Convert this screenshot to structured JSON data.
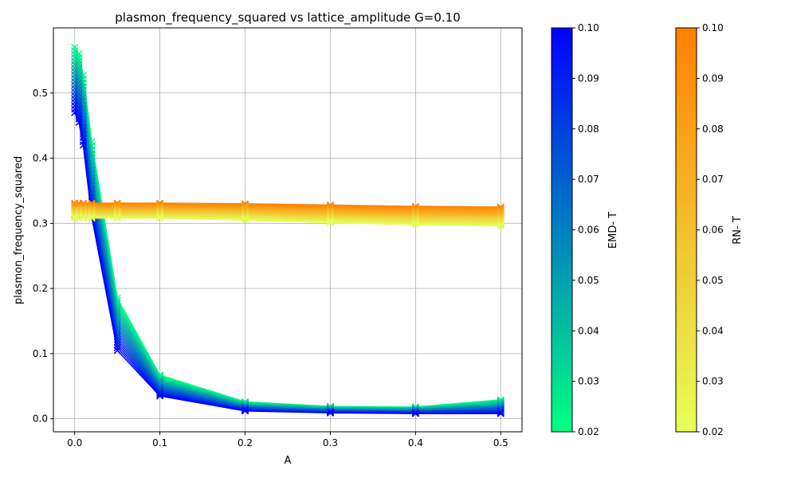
{
  "chart_data": {
    "type": "line",
    "title": "plasmon_frequency_squared vs lattice_amplitude G=0.10",
    "xlabel": "A",
    "ylabel": "plasmon_frequency_squared",
    "xlim": [
      -0.025,
      0.525
    ],
    "ylim": [
      -0.02,
      0.6
    ],
    "grid": true,
    "x": [
      0.0,
      0.005,
      0.01,
      0.02,
      0.05,
      0.1,
      0.2,
      0.3,
      0.4,
      0.5
    ],
    "x_ticks": [
      0.0,
      0.1,
      0.2,
      0.3,
      0.4,
      0.5
    ],
    "x_tick_labels": [
      "0.0",
      "0.1",
      "0.2",
      "0.3",
      "0.4",
      "0.5"
    ],
    "y_ticks": [
      0.0,
      0.1,
      0.2,
      0.3,
      0.4,
      0.5
    ],
    "y_tick_labels": [
      "0.0",
      "0.1",
      "0.2",
      "0.3",
      "0.4",
      "0.5"
    ],
    "marker": "x",
    "families": [
      {
        "name": "EMD",
        "colorbar_label": "EMD- T",
        "colormap": [
          "#00ff80",
          "#0000ff"
        ],
        "t_range": [
          0.02,
          0.1
        ],
        "n_series": 20,
        "coldest_T": 0.02,
        "hottest_T": 0.1,
        "coldest_values": [
          0.57,
          0.56,
          0.527,
          0.425,
          0.185,
          0.067,
          0.026,
          0.019,
          0.018,
          0.029
        ],
        "hottest_values": [
          0.47,
          0.455,
          0.42,
          0.31,
          0.105,
          0.035,
          0.012,
          0.009,
          0.008,
          0.008
        ]
      },
      {
        "name": "RN",
        "colorbar_label": "RN- T",
        "colormap": [
          "#e6ff59",
          "#ff8000"
        ],
        "t_range": [
          0.02,
          0.1
        ],
        "n_series": 20,
        "coldest_T": 0.02,
        "hottest_T": 0.1,
        "coldest_values": [
          0.308,
          0.308,
          0.308,
          0.308,
          0.308,
          0.308,
          0.305,
          0.301,
          0.298,
          0.296
        ],
        "hottest_values": [
          0.331,
          0.331,
          0.331,
          0.331,
          0.331,
          0.331,
          0.33,
          0.328,
          0.326,
          0.325
        ]
      }
    ],
    "colorbars": [
      {
        "name": "EMD",
        "label": "EMD- T",
        "ticks": [
          0.02,
          0.03,
          0.04,
          0.05,
          0.06,
          0.07,
          0.08,
          0.09,
          0.1
        ],
        "tick_labels": [
          "0.02",
          "0.03",
          "0.04",
          "0.05",
          "0.06",
          "0.07",
          "0.08",
          "0.09",
          "0.10"
        ]
      },
      {
        "name": "RN",
        "label": "RN- T",
        "ticks": [
          0.02,
          0.03,
          0.04,
          0.05,
          0.06,
          0.07,
          0.08,
          0.09,
          0.1
        ],
        "tick_labels": [
          "0.02",
          "0.03",
          "0.04",
          "0.05",
          "0.06",
          "0.07",
          "0.08",
          "0.09",
          "0.10"
        ]
      }
    ]
  }
}
